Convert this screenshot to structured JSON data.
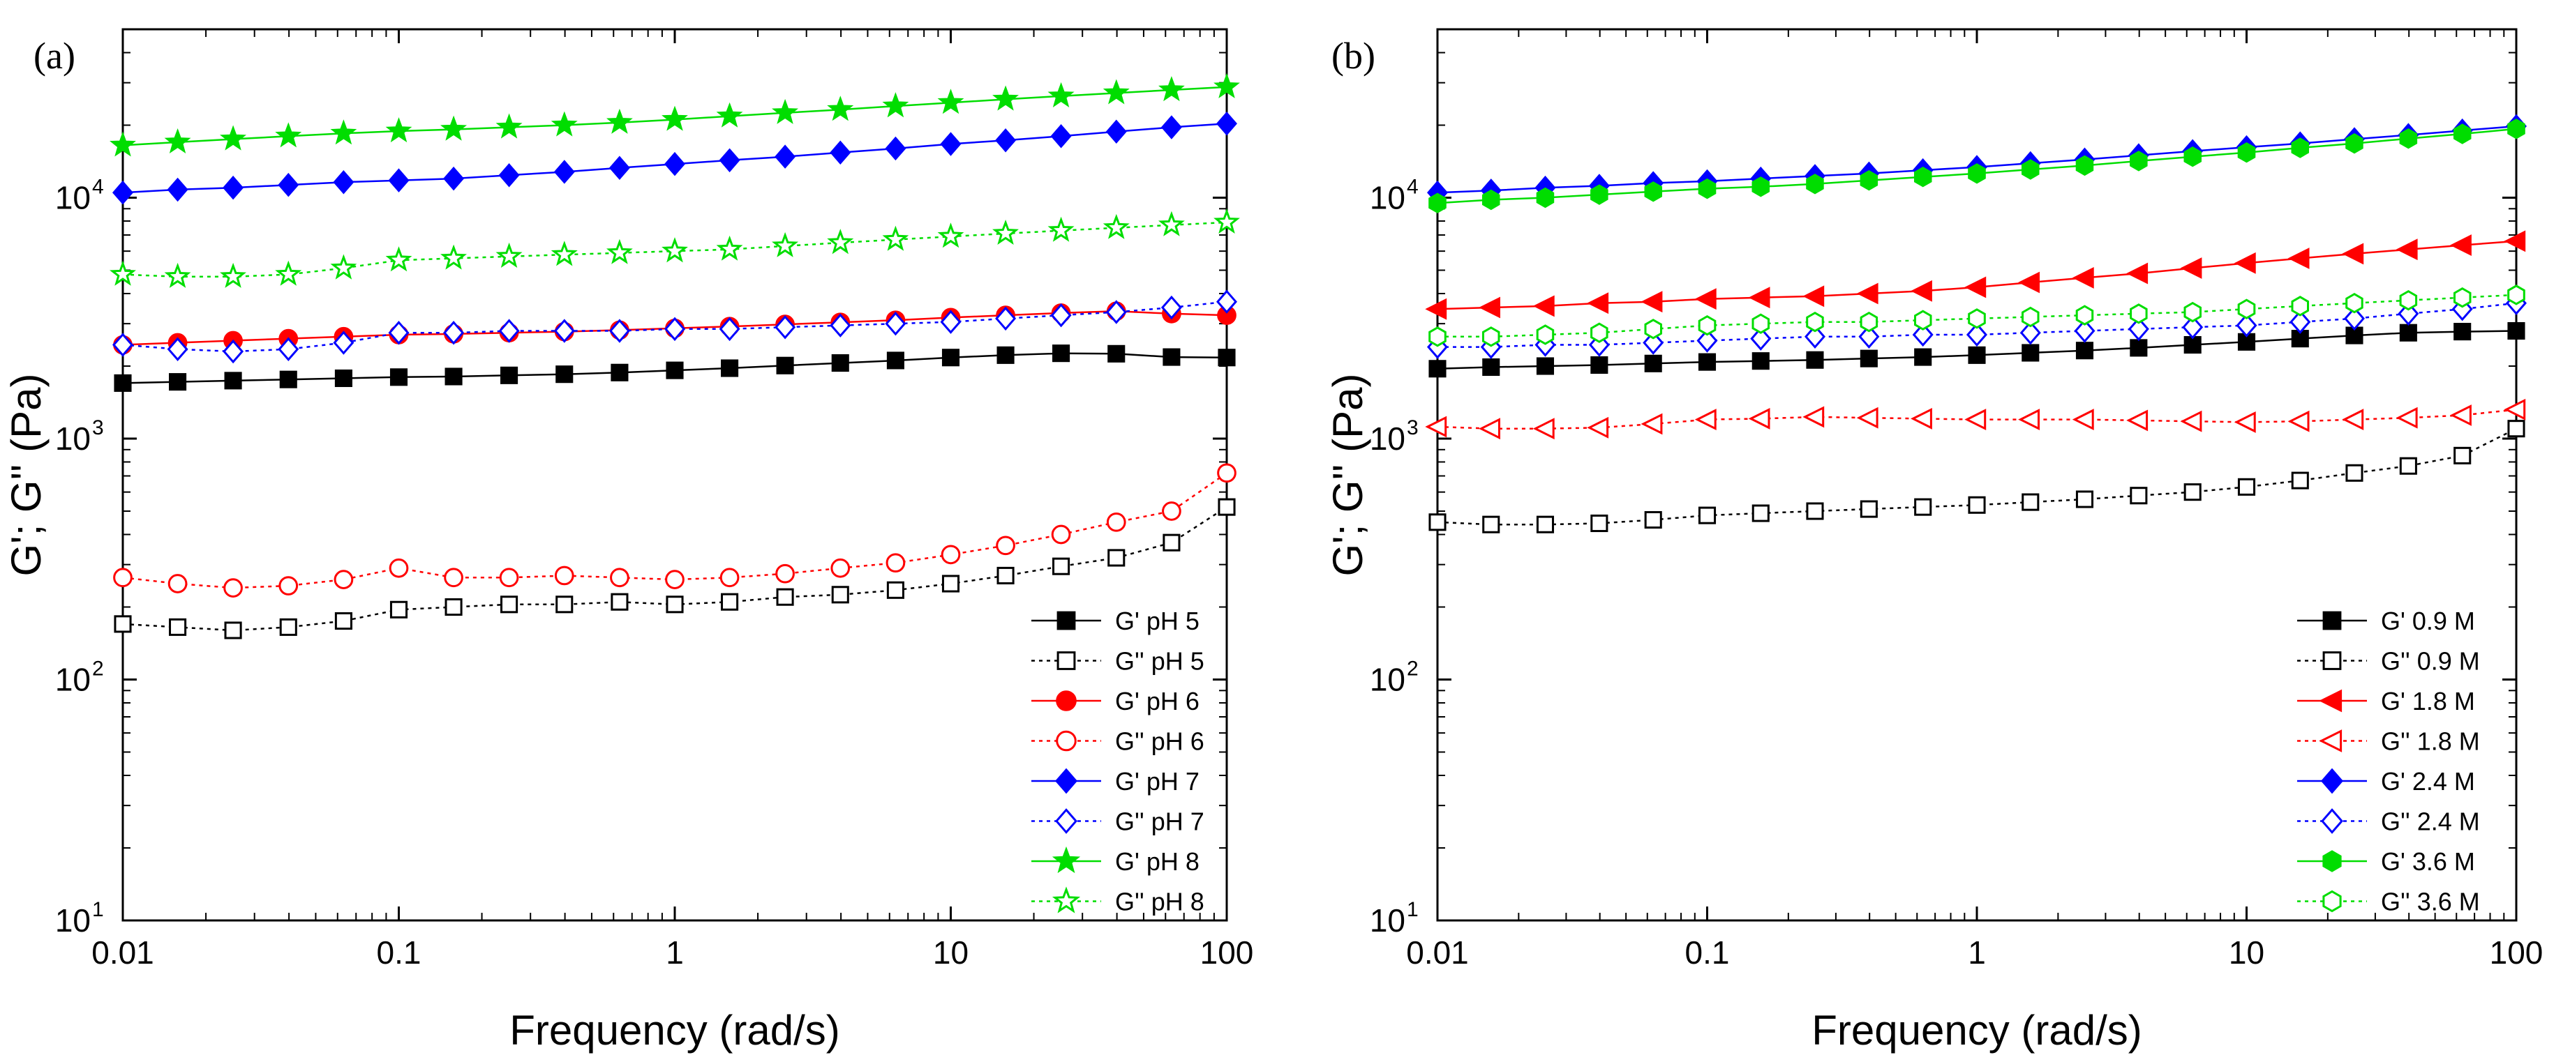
{
  "chart_data": [
    {
      "panel_label": "(a)",
      "type": "scatter",
      "xscale": "log",
      "yscale": "log",
      "xlabel": "Frequency (rad/s)",
      "ylabel": "G'; G'' (Pa)",
      "xlim": [
        0.01,
        100
      ],
      "ylim": [
        10,
        50000
      ],
      "x_tick_labels": [
        "0.01",
        "0.1",
        "1",
        "10",
        "100"
      ],
      "y_tick_exponents": [
        "1",
        "2",
        "3",
        "4"
      ],
      "legend_position": "bottom-right",
      "x": [
        0.01,
        0.0158,
        0.0251,
        0.0398,
        0.0631,
        0.1,
        0.158,
        0.251,
        0.398,
        0.631,
        1,
        1.58,
        2.51,
        3.98,
        6.31,
        10,
        15.8,
        25.1,
        39.8,
        63.1,
        100
      ],
      "series": [
        {
          "name": "G' pH 5",
          "color": "#000000",
          "marker": "square",
          "filled": true,
          "line": "solid",
          "values": [
            1700,
            1720,
            1740,
            1760,
            1780,
            1800,
            1810,
            1830,
            1850,
            1880,
            1920,
            1960,
            2010,
            2060,
            2110,
            2170,
            2220,
            2260,
            2250,
            2180,
            2170
          ]
        },
        {
          "name": "G'' pH 5",
          "color": "#000000",
          "marker": "square",
          "filled": false,
          "line": "dotted",
          "values": [
            170,
            165,
            160,
            165,
            175,
            195,
            200,
            205,
            205,
            210,
            205,
            210,
            220,
            225,
            235,
            250,
            270,
            295,
            320,
            370,
            520
          ]
        },
        {
          "name": "G' pH 6",
          "color": "#ff0000",
          "marker": "circle",
          "filled": true,
          "line": "solid",
          "values": [
            2450,
            2500,
            2550,
            2600,
            2650,
            2700,
            2720,
            2750,
            2780,
            2820,
            2870,
            2920,
            2980,
            3040,
            3100,
            3180,
            3250,
            3320,
            3380,
            3300,
            3250
          ]
        },
        {
          "name": "G'' pH 6",
          "color": "#ff0000",
          "marker": "circle",
          "filled": false,
          "line": "dotted",
          "values": [
            265,
            250,
            240,
            245,
            260,
            290,
            265,
            265,
            270,
            265,
            260,
            265,
            275,
            290,
            305,
            330,
            360,
            400,
            450,
            500,
            720
          ]
        },
        {
          "name": "G' pH 7",
          "color": "#0000ff",
          "marker": "diamond",
          "filled": true,
          "line": "solid",
          "values": [
            10500,
            10800,
            11000,
            11300,
            11600,
            11800,
            12000,
            12400,
            12800,
            13300,
            13800,
            14300,
            14800,
            15400,
            16000,
            16700,
            17300,
            18000,
            18800,
            19600,
            20300
          ]
        },
        {
          "name": "G'' pH 7",
          "color": "#0000ff",
          "marker": "diamond",
          "filled": false,
          "line": "dotted",
          "values": [
            2450,
            2350,
            2300,
            2350,
            2500,
            2750,
            2750,
            2800,
            2800,
            2800,
            2850,
            2850,
            2900,
            2950,
            3000,
            3050,
            3150,
            3250,
            3350,
            3500,
            3700
          ]
        },
        {
          "name": "G' pH 8",
          "color": "#00dd00",
          "marker": "star",
          "filled": true,
          "line": "solid",
          "values": [
            16500,
            17000,
            17500,
            18000,
            18500,
            18900,
            19200,
            19600,
            20000,
            20500,
            21100,
            21800,
            22500,
            23200,
            24000,
            24800,
            25600,
            26400,
            27200,
            28000,
            28800
          ]
        },
        {
          "name": "G'' pH 8",
          "color": "#00dd00",
          "marker": "star",
          "filled": false,
          "line": "dotted",
          "values": [
            4800,
            4700,
            4700,
            4800,
            5100,
            5500,
            5600,
            5700,
            5800,
            5900,
            6000,
            6100,
            6300,
            6500,
            6700,
            6900,
            7100,
            7300,
            7500,
            7700,
            7900
          ]
        }
      ]
    },
    {
      "panel_label": "(b)",
      "type": "scatter",
      "xscale": "log",
      "yscale": "log",
      "xlabel": "Frequency (rad/s)",
      "ylabel": "G'; G'' (Pa)",
      "xlim": [
        0.01,
        100
      ],
      "ylim": [
        10,
        50000
      ],
      "x_tick_labels": [
        "0.01",
        "0.1",
        "1",
        "10",
        "100"
      ],
      "y_tick_exponents": [
        "1",
        "2",
        "3",
        "4"
      ],
      "legend_position": "bottom-right",
      "x": [
        0.01,
        0.0158,
        0.0251,
        0.0398,
        0.0631,
        0.1,
        0.158,
        0.251,
        0.398,
        0.631,
        1,
        1.58,
        2.51,
        3.98,
        6.31,
        10,
        15.8,
        25.1,
        39.8,
        63.1,
        100
      ],
      "series": [
        {
          "name": "G' 0.9 M",
          "color": "#000000",
          "marker": "square",
          "filled": true,
          "line": "solid",
          "values": [
            1950,
            1980,
            2000,
            2020,
            2050,
            2080,
            2100,
            2120,
            2150,
            2180,
            2220,
            2270,
            2320,
            2380,
            2450,
            2520,
            2600,
            2680,
            2750,
            2780,
            2800
          ]
        },
        {
          "name": "G'' 0.9 M",
          "color": "#000000",
          "marker": "square",
          "filled": false,
          "line": "dotted",
          "values": [
            450,
            440,
            440,
            445,
            460,
            480,
            490,
            500,
            510,
            520,
            530,
            545,
            560,
            580,
            600,
            630,
            670,
            720,
            770,
            850,
            1100
          ]
        },
        {
          "name": "G' 1.8 M",
          "color": "#ff0000",
          "marker": "triangle-left",
          "filled": true,
          "line": "solid",
          "values": [
            3450,
            3500,
            3550,
            3650,
            3700,
            3800,
            3850,
            3900,
            4000,
            4100,
            4250,
            4450,
            4650,
            4850,
            5100,
            5350,
            5600,
            5850,
            6100,
            6350,
            6600
          ]
        },
        {
          "name": "G'' 1.8 M",
          "color": "#ff0000",
          "marker": "triangle-left",
          "filled": false,
          "line": "dotted",
          "values": [
            1120,
            1100,
            1100,
            1110,
            1150,
            1200,
            1210,
            1230,
            1220,
            1210,
            1200,
            1200,
            1200,
            1190,
            1180,
            1170,
            1180,
            1200,
            1220,
            1250,
            1320
          ]
        },
        {
          "name": "G' 2.4 M",
          "color": "#0000ff",
          "marker": "diamond",
          "filled": true,
          "line": "solid",
          "values": [
            10500,
            10700,
            11000,
            11200,
            11500,
            11700,
            12000,
            12300,
            12600,
            13000,
            13400,
            13900,
            14400,
            15000,
            15600,
            16200,
            16800,
            17500,
            18200,
            19000,
            19800
          ]
        },
        {
          "name": "G'' 2.4 M",
          "color": "#0000ff",
          "marker": "diamond",
          "filled": false,
          "line": "dotted",
          "values": [
            2400,
            2400,
            2450,
            2450,
            2500,
            2550,
            2600,
            2650,
            2650,
            2700,
            2700,
            2750,
            2800,
            2850,
            2900,
            2950,
            3050,
            3150,
            3300,
            3450,
            3650
          ]
        },
        {
          "name": "G' 3.6 M",
          "color": "#00dd00",
          "marker": "hexagon",
          "filled": true,
          "line": "solid",
          "values": [
            9500,
            9800,
            10000,
            10300,
            10600,
            10900,
            11100,
            11400,
            11800,
            12200,
            12600,
            13100,
            13600,
            14200,
            14800,
            15400,
            16100,
            16800,
            17600,
            18400,
            19300
          ]
        },
        {
          "name": "G'' 3.6 M",
          "color": "#00dd00",
          "marker": "hexagon",
          "filled": false,
          "line": "dotted",
          "values": [
            2650,
            2650,
            2700,
            2750,
            2850,
            2950,
            3000,
            3050,
            3050,
            3100,
            3150,
            3200,
            3250,
            3300,
            3350,
            3450,
            3550,
            3650,
            3750,
            3850,
            3950
          ]
        }
      ]
    }
  ]
}
